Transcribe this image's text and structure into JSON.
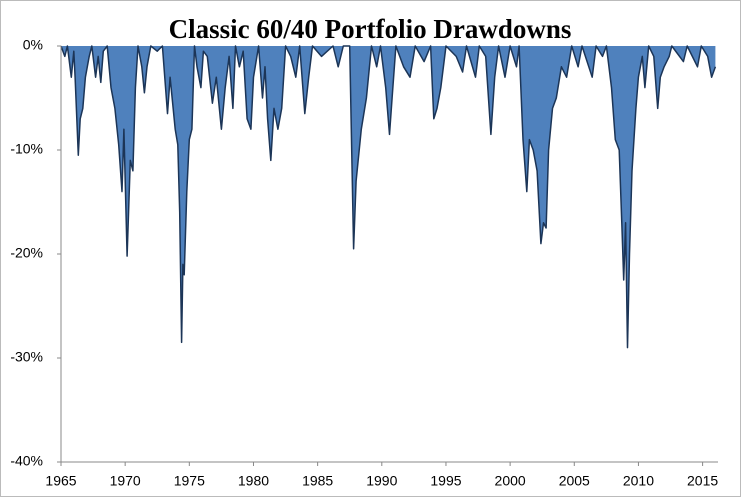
{
  "chart_data": {
    "type": "area",
    "title": "Classic 60/40 Portfolio Drawdowns",
    "x": [
      1965.0,
      1965.3,
      1965.5,
      1965.8,
      1966.0,
      1966.1,
      1966.35,
      1966.5,
      1966.7,
      1966.9,
      1967.2,
      1967.4,
      1967.7,
      1967.9,
      1968.1,
      1968.3,
      1968.6,
      1968.9,
      1969.2,
      1969.5,
      1969.75,
      1969.9,
      1970.15,
      1970.4,
      1970.6,
      1970.8,
      1971.0,
      1971.3,
      1971.5,
      1971.7,
      1972.0,
      1972.5,
      1972.9,
      1973.3,
      1973.5,
      1973.9,
      1974.1,
      1974.25,
      1974.4,
      1974.5,
      1974.6,
      1974.8,
      1975.0,
      1975.2,
      1975.4,
      1975.6,
      1975.9,
      1976.1,
      1976.4,
      1976.8,
      1977.1,
      1977.5,
      1977.8,
      1978.1,
      1978.4,
      1978.6,
      1978.9,
      1979.2,
      1979.5,
      1979.8,
      1980.0,
      1980.4,
      1980.7,
      1980.9,
      1981.1,
      1981.35,
      1981.6,
      1981.9,
      1982.2,
      1982.5,
      1982.9,
      1983.3,
      1983.6,
      1984.0,
      1984.3,
      1984.6,
      1985.3,
      1986.2,
      1986.6,
      1987.0,
      1987.5,
      1987.8,
      1988.0,
      1988.4,
      1988.8,
      1989.2,
      1989.6,
      1989.9,
      1990.3,
      1990.6,
      1990.8,
      1991.1,
      1991.7,
      1992.2,
      1992.6,
      1993.3,
      1993.8,
      1994.05,
      1994.3,
      1994.6,
      1995.0,
      1995.8,
      1996.3,
      1996.6,
      1997.3,
      1997.6,
      1998.1,
      1998.5,
      1998.8,
      1999.1,
      1999.6,
      2000.0,
      2000.5,
      2000.7,
      2001.0,
      2001.3,
      2001.5,
      2001.8,
      2002.1,
      2002.4,
      2002.6,
      2002.8,
      2003.0,
      2003.3,
      2003.6,
      2004.0,
      2004.4,
      2004.8,
      2005.3,
      2005.6,
      2006.4,
      2006.7,
      2007.2,
      2007.5,
      2007.9,
      2008.2,
      2008.5,
      2008.7,
      2008.85,
      2009.0,
      2009.15,
      2009.3,
      2009.5,
      2009.8,
      2010.0,
      2010.3,
      2010.5,
      2010.8,
      2011.2,
      2011.5,
      2011.7,
      2012.0,
      2012.4,
      2012.6,
      2013.5,
      2013.8,
      2014.6,
      2014.9,
      2015.4,
      2015.7,
      2016.0
    ],
    "values": [
      0,
      -1,
      0,
      -3,
      -0.5,
      -3,
      -10.5,
      -7,
      -6,
      -3,
      -1,
      0,
      -3,
      -1,
      -3.5,
      -0.5,
      0,
      -4,
      -6,
      -9.5,
      -14,
      -8,
      -20.2,
      -11,
      -12,
      -4,
      0,
      -2,
      -4.5,
      -2,
      0,
      -0.5,
      0,
      -6.5,
      -3,
      -8,
      -9.5,
      -16,
      -28.5,
      -21,
      -22,
      -14,
      -9,
      -8,
      0,
      -2,
      -4,
      -0.5,
      -1,
      -5.5,
      -3,
      -8,
      -4,
      -1,
      -6,
      0,
      -2,
      -0.5,
      -7,
      -8,
      -3,
      0,
      -5,
      -2,
      -7,
      -11,
      -6,
      -8,
      -6,
      0,
      -1,
      -3,
      0,
      -6.5,
      -3,
      0,
      -1,
      0,
      -2,
      0,
      0,
      -19.5,
      -13,
      -8,
      -5,
      0,
      -2,
      0,
      -4,
      -8.5,
      -5,
      0,
      -2,
      -3,
      0,
      -1.5,
      0,
      -7,
      -6,
      -4,
      0,
      -1,
      -2.5,
      0,
      -3,
      0,
      -1,
      -8.5,
      -3,
      0,
      -3,
      0,
      -2,
      0,
      -9,
      -14,
      -9,
      -10,
      -12,
      -19,
      -17,
      -17.5,
      -10,
      -6,
      -5,
      -2,
      -3,
      0,
      -2,
      0,
      -3,
      0,
      -1,
      0,
      -4,
      -9,
      -10,
      -17,
      -22.5,
      -17,
      -29,
      -20,
      -12,
      -6,
      -3,
      -1,
      -4,
      0,
      -1,
      -6,
      -3,
      -2,
      -1,
      0,
      -1.5,
      0,
      -2,
      0,
      -1,
      -3,
      -2
    ],
    "color": "#4f81bd",
    "line_color": "#1c3557",
    "xlim": [
      1965,
      2016.2
    ],
    "xticks": [
      1965,
      1970,
      1975,
      1980,
      1985,
      1990,
      1995,
      2000,
      2005,
      2010,
      2015
    ],
    "ylim": [
      -40,
      0
    ],
    "yticks": [
      {
        "value": 0,
        "label": "0%"
      },
      {
        "value": -10,
        "label": "-10%"
      },
      {
        "value": -20,
        "label": "-20%"
      },
      {
        "value": -30,
        "label": "-30%"
      },
      {
        "value": -40,
        "label": "-40%"
      }
    ]
  }
}
